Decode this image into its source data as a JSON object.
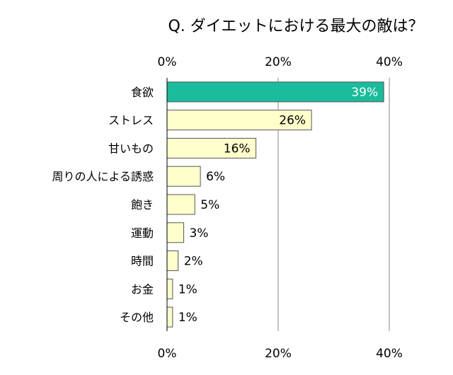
{
  "chart_data": {
    "type": "bar",
    "orientation": "horizontal",
    "title": "Q. ダイエットにおける最大の敵は？",
    "categories": [
      "食欲",
      "ストレス",
      "甘いもの",
      "周りの人による誘惑",
      "飽き",
      "運動",
      "時間",
      "お金",
      "その他"
    ],
    "values": [
      39,
      26,
      16,
      6,
      5,
      3,
      2,
      1,
      1
    ],
    "value_labels": [
      "39%",
      "26%",
      "16%",
      "6%",
      "5%",
      "3%",
      "2%",
      "1%",
      "1%"
    ],
    "xlim": [
      0,
      40
    ],
    "xticks": [
      0,
      20,
      40
    ],
    "xtick_labels": [
      "0%",
      "20%",
      "40%"
    ],
    "grid": true,
    "highlight_index": 0,
    "colors": {
      "highlight": "#1ABC9C",
      "bar": "#FFFFCC",
      "bar_border": "#555555",
      "grid": "#888888",
      "axis": "#000000"
    }
  }
}
